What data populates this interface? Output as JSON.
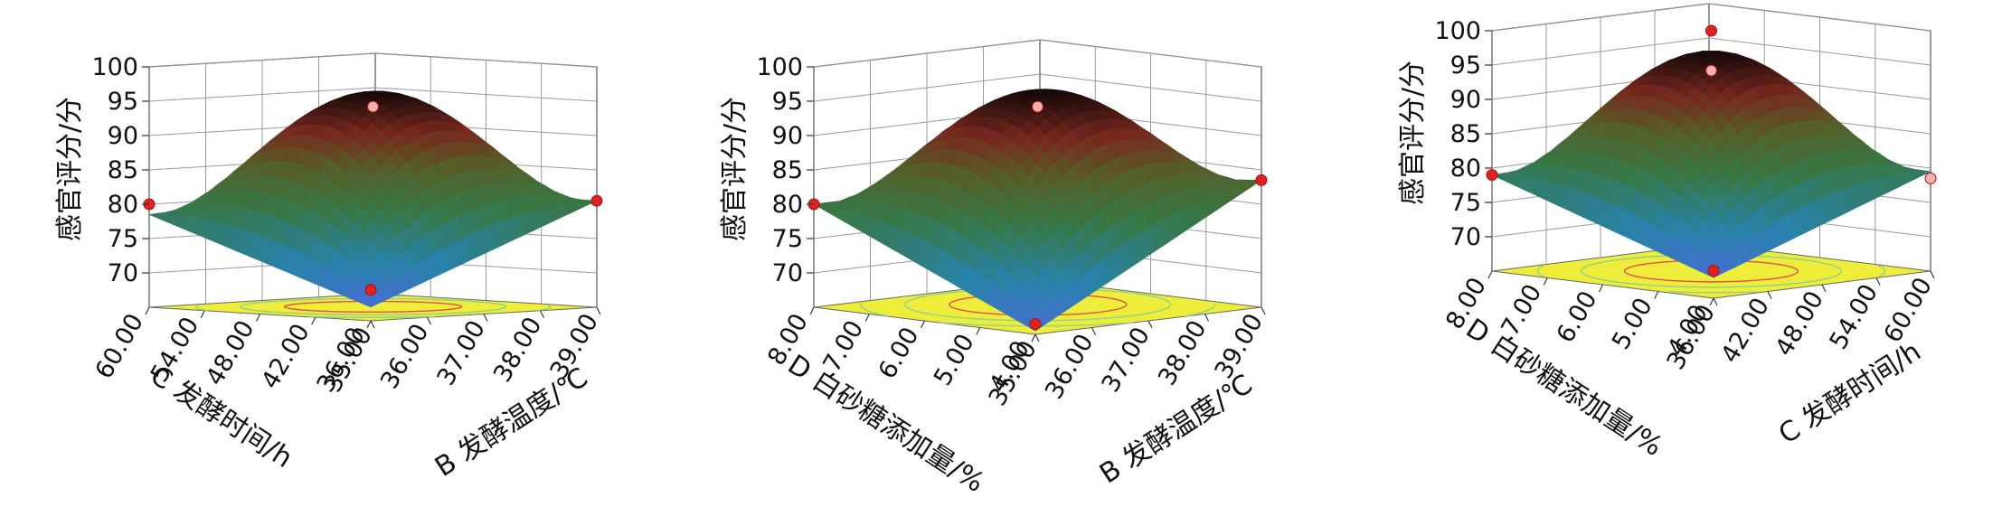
{
  "chart_data": [
    {
      "type": "surface3d",
      "zlabel": "感官评分/分",
      "zticks": [
        "70",
        "75",
        "80",
        "85",
        "90",
        "95",
        "100"
      ],
      "zlim": [
        65,
        100
      ],
      "x_axis": {
        "label": "C 发酵时间/h",
        "ticks": [
          "36.00",
          "42.00",
          "48.00",
          "54.00",
          "60.00"
        ],
        "range": [
          36,
          60
        ]
      },
      "y_axis": {
        "label": "B 发酵温度/℃",
        "ticks": [
          "35.00",
          "36.00",
          "37.00",
          "38.00",
          "39.00"
        ],
        "range": [
          35,
          39
        ]
      },
      "corner_values": {
        "near": 67.0,
        "left": 78.5,
        "right": 80.5,
        "back": 81.0
      },
      "peak": {
        "a": 0.52,
        "b": 0.52,
        "value": 96.0
      },
      "design_points": [
        {
          "a": 0.5,
          "b": 0.5,
          "z": 94.2
        },
        {
          "a": 0,
          "b": 0,
          "z": 69.5
        },
        {
          "a": 1,
          "b": 0,
          "z": 80.0
        },
        {
          "a": 0,
          "b": 1,
          "z": 80.5
        }
      ]
    },
    {
      "type": "surface3d",
      "zlabel": "感官评分/分",
      "zticks": [
        "70",
        "75",
        "80",
        "85",
        "90",
        "95",
        "100"
      ],
      "zlim": [
        65,
        100
      ],
      "x_axis": {
        "label": "D 白砂糖添加量/%",
        "ticks": [
          "4.00",
          "5.00",
          "6.00",
          "7.00",
          "8.00"
        ],
        "range": [
          4,
          8
        ]
      },
      "y_axis": {
        "label": "B 发酵温度/℃",
        "ticks": [
          "35.00",
          "36.00",
          "37.00",
          "38.00",
          "39.00"
        ],
        "range": [
          35,
          39
        ]
      },
      "corner_values": {
        "near": 65.5,
        "left": 80.0,
        "right": 83.5,
        "back": 80.0
      },
      "peak": {
        "a": 0.55,
        "b": 0.55,
        "value": 96.0
      },
      "design_points": [
        {
          "a": 0.5,
          "b": 0.5,
          "z": 94.2
        },
        {
          "a": 0,
          "b": 0,
          "z": 66.5
        },
        {
          "a": 1,
          "b": 0,
          "z": 80.0
        },
        {
          "a": 0,
          "b": 1,
          "z": 83.5
        }
      ]
    },
    {
      "type": "surface3d",
      "zlabel": "感官评分/分",
      "zticks": [
        "70",
        "75",
        "80",
        "85",
        "90",
        "95",
        "100"
      ],
      "zlim": [
        65,
        100
      ],
      "x_axis": {
        "label": "D 白砂糖添加量/%",
        "ticks": [
          "4.00",
          "5.00",
          "6.00",
          "7.00",
          "8.00"
        ],
        "range": [
          4,
          8
        ]
      },
      "y_axis": {
        "label": "C 发酵时间/h",
        "ticks": [
          "36.00",
          "42.00",
          "48.00",
          "54.00",
          "60.00"
        ],
        "range": [
          36,
          60
        ]
      },
      "corner_values": {
        "near": 68.0,
        "left": 79.0,
        "right": 79.5,
        "back": 80.0
      },
      "peak": {
        "a": 0.5,
        "b": 0.5,
        "value": 96.5
      },
      "design_points": [
        {
          "a": 0.5,
          "b": 0.5,
          "z": 100.0
        },
        {
          "a": 0.5,
          "b": 0.5,
          "z": 94.2
        },
        {
          "a": 0,
          "b": 0,
          "z": 69.0
        },
        {
          "a": 1,
          "b": 0,
          "z": 79.0
        },
        {
          "a": 0,
          "b": 1,
          "z": 78.5
        }
      ]
    }
  ]
}
